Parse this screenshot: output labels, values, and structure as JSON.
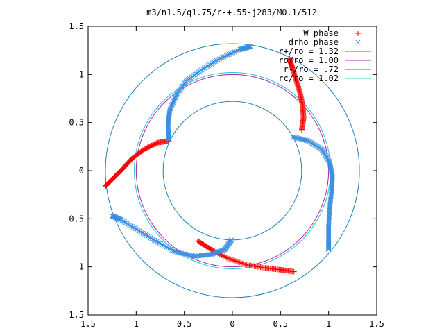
{
  "chart_data": {
    "type": "scatter",
    "title": "m3/n1.5/q1.75/r-+.55-j283/M0.1/512",
    "xlabel": "",
    "ylabel": "",
    "xlim": [
      -1.5,
      1.5
    ],
    "ylim": [
      -1.5,
      1.5
    ],
    "x_ticks": [
      -1.5,
      -1,
      -0.5,
      0,
      0.5,
      1,
      1.5
    ],
    "x_tick_labels": [
      "1.5",
      "1",
      "0.5",
      "0",
      "0.5",
      "1",
      "1.5"
    ],
    "y_ticks": [
      1.5,
      1,
      0.5,
      0,
      -0.5,
      -1,
      -1.5
    ],
    "y_tick_labels": [
      "1.5",
      "1",
      "0.5",
      "0",
      "0.5",
      "1",
      "1.5"
    ],
    "grid": false,
    "legend_position": "top-right",
    "legend": [
      {
        "label": "W phase",
        "marker": "+",
        "color": "#ff0000"
      },
      {
        "label": "drho phase",
        "marker": "x",
        "color": "#3a8fe0"
      },
      {
        "label": "r+/ro = 1.32",
        "marker": "line",
        "color": "#1a7fc0"
      },
      {
        "label": "ro/ro = 1.00",
        "marker": "line",
        "color": "#b020b0"
      },
      {
        "label": "r-/ro = .72",
        "marker": "line",
        "color": "#1a7fc0"
      },
      {
        "label": "rc/ro = 1.02",
        "marker": "line",
        "color": "#20c8c8"
      }
    ],
    "circles": [
      {
        "name": "r+/ro = 1.32",
        "radius": 1.32,
        "color": "#1a7fc0"
      },
      {
        "name": "ro/ro = 1.00",
        "radius": 1.0,
        "color": "#b020b0"
      },
      {
        "name": "r-/ro = .72",
        "radius": 0.72,
        "color": "#1a7fc0"
      },
      {
        "name": "rc/ro = 1.02",
        "radius": 1.02,
        "color": "#20c8c8"
      }
    ],
    "series": [
      {
        "name": "W phase",
        "marker": "+",
        "color": "#ff0000",
        "segments": [
          [
            [
              0.72,
              0.42
            ],
            [
              0.74,
              0.55
            ],
            [
              0.73,
              0.68
            ],
            [
              0.7,
              0.82
            ],
            [
              0.66,
              0.95
            ],
            [
              0.62,
              1.08
            ],
            [
              0.59,
              1.17
            ]
          ],
          [
            [
              -0.36,
              -0.73
            ],
            [
              -0.22,
              -0.82
            ],
            [
              -0.05,
              -0.91
            ],
            [
              0.15,
              -0.98
            ],
            [
              0.33,
              -1.01
            ],
            [
              0.5,
              -1.03
            ],
            [
              0.64,
              -1.05
            ]
          ],
          [
            [
              -0.66,
              0.31
            ],
            [
              -0.78,
              0.29
            ],
            [
              -0.92,
              0.22
            ],
            [
              -1.05,
              0.12
            ],
            [
              -1.15,
              0.01
            ],
            [
              -1.25,
              -0.09
            ],
            [
              -1.32,
              -0.16
            ]
          ]
        ]
      },
      {
        "name": "drho phase",
        "marker": "x",
        "color": "#3a8fe0",
        "segments": [
          [
            [
              -0.66,
              0.32
            ],
            [
              -0.67,
              0.48
            ],
            [
              -0.65,
              0.63
            ],
            [
              -0.58,
              0.79
            ],
            [
              -0.48,
              0.93
            ],
            [
              -0.32,
              1.05
            ],
            [
              -0.12,
              1.17
            ],
            [
              0.08,
              1.26
            ],
            [
              0.19,
              1.29
            ]
          ],
          [
            [
              0.63,
              0.35
            ],
            [
              0.79,
              0.31
            ],
            [
              0.93,
              0.22
            ],
            [
              1.01,
              0.09
            ],
            [
              1.04,
              -0.06
            ],
            [
              1.03,
              -0.22
            ],
            [
              1.01,
              -0.4
            ],
            [
              1.0,
              -0.58
            ],
            [
              1.0,
              -0.73
            ],
            [
              1.0,
              -0.82
            ]
          ],
          [
            [
              -0.01,
              -0.72
            ],
            [
              -0.08,
              -0.82
            ],
            [
              -0.22,
              -0.87
            ],
            [
              -0.4,
              -0.89
            ],
            [
              -0.6,
              -0.84
            ],
            [
              -0.8,
              -0.73
            ],
            [
              -0.98,
              -0.62
            ],
            [
              -1.16,
              -0.51
            ],
            [
              -1.25,
              -0.47
            ]
          ]
        ]
      }
    ]
  }
}
